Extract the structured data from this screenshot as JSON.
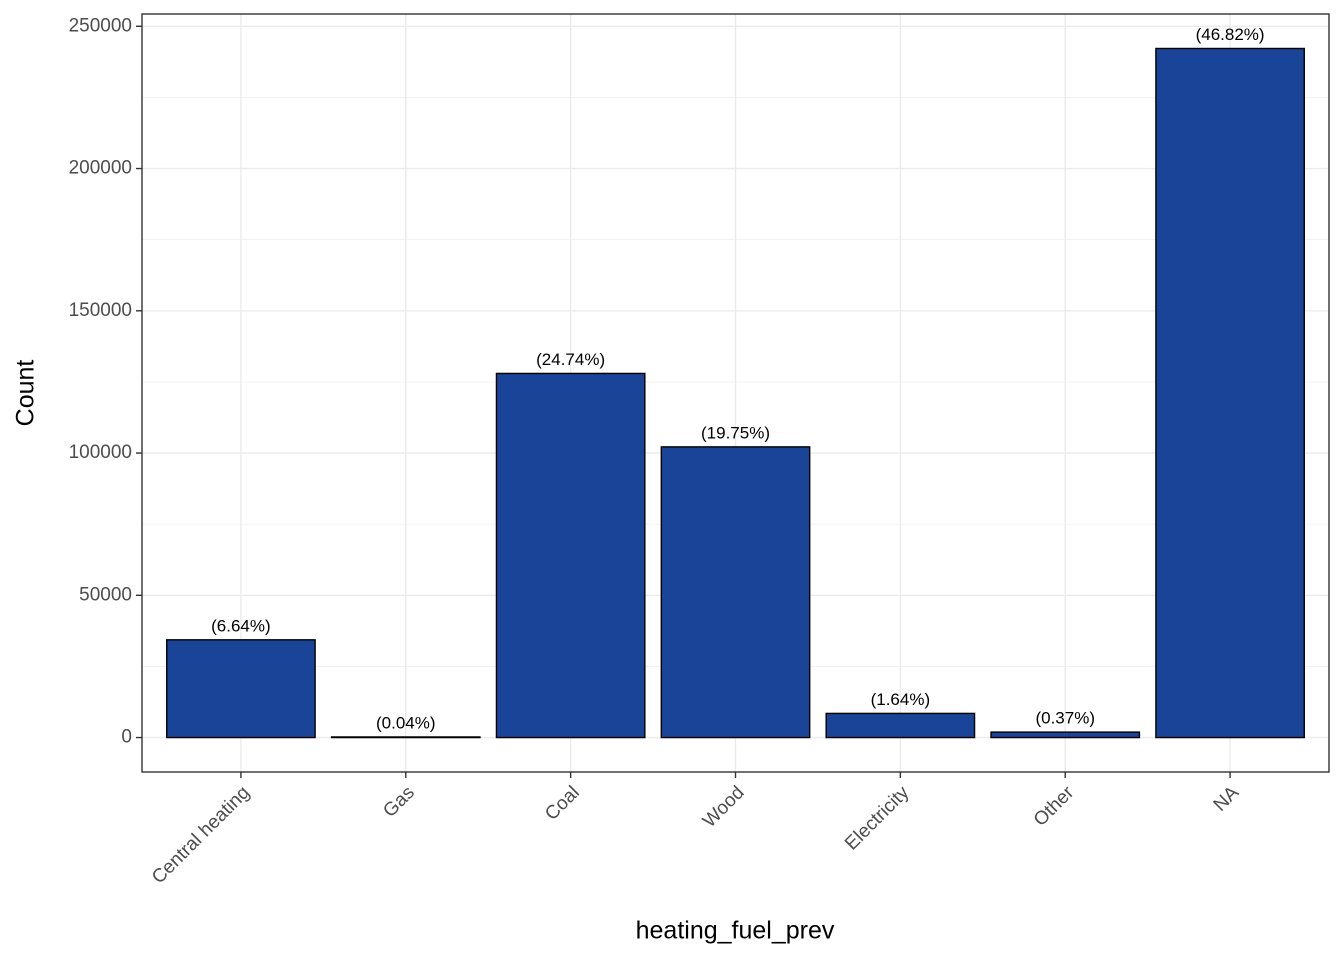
{
  "chart_data": {
    "type": "bar",
    "x_label": "heating_fuel_prev",
    "y_label": "Count",
    "categories": [
      "Central heating",
      "Gas",
      "Coal",
      "Wood",
      "Electricity",
      "Other",
      "NA"
    ],
    "values": [
      34350,
      207,
      127980,
      102170,
      8484,
      1914,
      242200
    ],
    "value_labels": [
      "(6.64%)",
      "(0.04%)",
      "(24.74%)",
      "(19.75%)",
      "(1.64%)",
      "(0.37%)",
      "(46.82%)"
    ],
    "color": "#1a4497",
    "ylim": [
      -12110,
      254320
    ],
    "yticks": [
      0,
      50000,
      100000,
      150000,
      200000,
      250000
    ],
    "yminor_ticks": [
      25000,
      75000,
      125000,
      175000,
      225000
    ],
    "grid": true
  }
}
